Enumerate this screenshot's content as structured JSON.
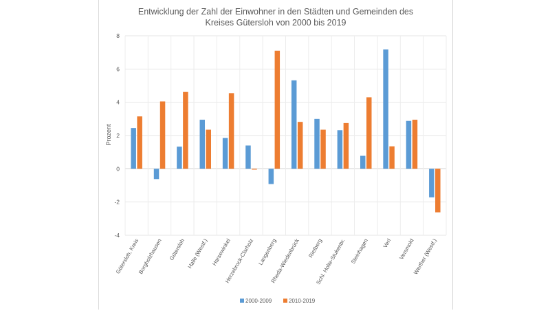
{
  "chart_data": {
    "type": "bar",
    "title_line1": "Entwicklung der Zahl der Einwohner in den Städten und Gemeinden des",
    "title_line2": "Kreises Gütersloh von 2000 bis 2019",
    "ylabel": "Prozent",
    "ylim": [
      -4,
      8
    ],
    "yticks": [
      -4,
      -2,
      0,
      2,
      4,
      6,
      8
    ],
    "grid": true,
    "legend_position": "bottom",
    "categories": [
      "Gütersloh, Kreis",
      "Borgholzhausen",
      "Gütersloh",
      "Halle (Westf.)",
      "Harsewinkel",
      "Herzebrock-Clarholz",
      "Langenberg",
      "Rheda-Wiedenbrück",
      "Rietberg",
      "Schl. Holte-Stukenbr.",
      "Steinhagen",
      "Verl",
      "Versmold",
      "Werther (Westf.)"
    ],
    "series": [
      {
        "name": "2000-2009",
        "color": "#5b9bd5",
        "values": [
          2.45,
          -0.62,
          1.33,
          2.95,
          1.85,
          1.4,
          -0.92,
          5.32,
          3.0,
          2.32,
          0.78,
          7.18,
          2.88,
          -1.72
        ]
      },
      {
        "name": "2010-2019",
        "color": "#ed7d31",
        "values": [
          3.15,
          4.05,
          4.62,
          2.35,
          4.55,
          -0.05,
          7.1,
          2.82,
          2.35,
          2.75,
          4.3,
          1.35,
          2.95,
          -2.62
        ]
      }
    ]
  }
}
